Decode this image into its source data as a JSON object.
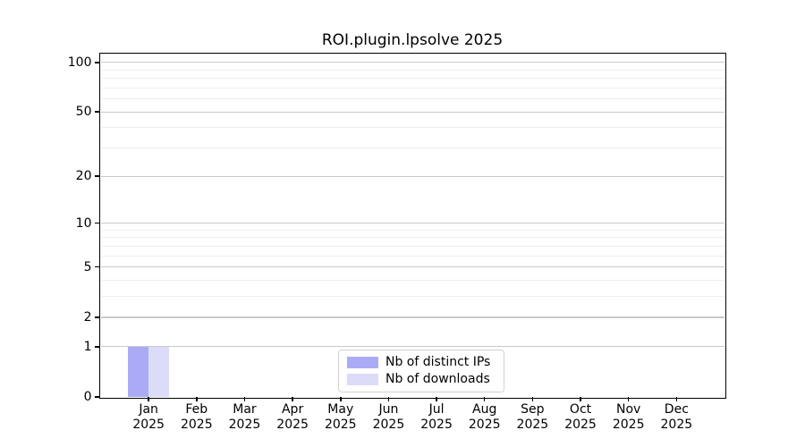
{
  "chart_data": {
    "type": "bar",
    "title": "ROI.plugin.lpsolve 2025",
    "categories": [
      "Jan",
      "Feb",
      "Mar",
      "Apr",
      "May",
      "Jun",
      "Jul",
      "Aug",
      "Sep",
      "Oct",
      "Nov",
      "Dec"
    ],
    "category_sublabel": "2025",
    "series": [
      {
        "name": "Nb of distinct IPs",
        "color": "#ababf5",
        "values": [
          1,
          0,
          0,
          0,
          0,
          0,
          0,
          0,
          0,
          0,
          0,
          0
        ]
      },
      {
        "name": "Nb of downloads",
        "color": "#dcdcf8",
        "values": [
          1,
          0,
          0,
          0,
          0,
          0,
          0,
          0,
          0,
          0,
          0,
          0
        ]
      }
    ],
    "y_axis": {
      "scale": "log1p",
      "tick_values": [
        0,
        1,
        2,
        5,
        10,
        20,
        50,
        100
      ],
      "minor_gridlines": [
        3,
        4,
        6,
        7,
        8,
        9,
        30,
        40,
        60,
        70,
        80,
        90
      ],
      "ylim": [
        0,
        113
      ]
    },
    "legend": {
      "position": "bottom-center"
    },
    "colors": {
      "major_grid": "#c9c9c9",
      "minor_grid": "#eeeeee",
      "axis": "#000000",
      "text": "#000000",
      "background": "#ffffff"
    }
  }
}
